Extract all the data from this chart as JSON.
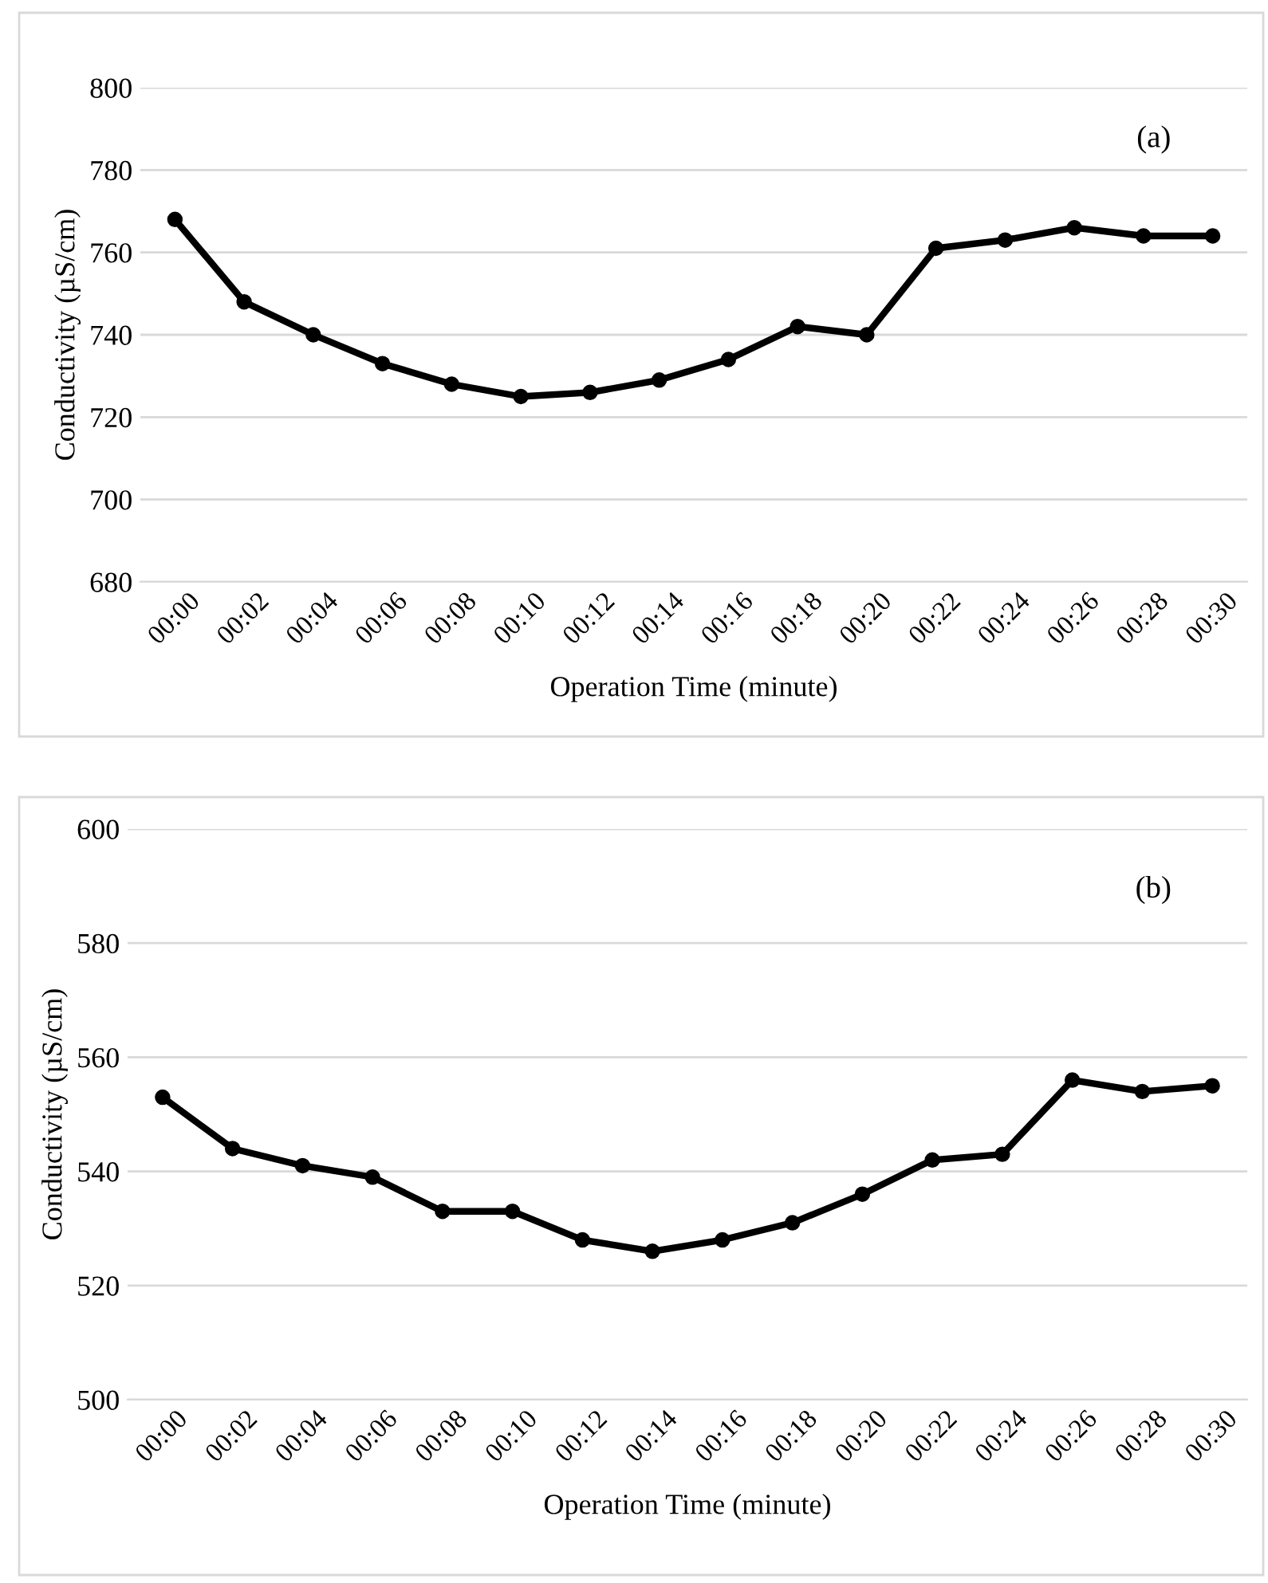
{
  "chart_data": [
    {
      "type": "line",
      "ylabel": "Conductivity (µS/cm)",
      "xlabel": "Operation Time (minute)",
      "annotations": [
        "(a)"
      ],
      "categories": [
        "00:00",
        "00:02",
        "00:04",
        "00:06",
        "00:08",
        "00:10",
        "00:12",
        "00:14",
        "00:16",
        "00:18",
        "00:20",
        "00:22",
        "00:24",
        "00:26",
        "00:28",
        "00:30"
      ],
      "series": [
        {
          "color": "#000000",
          "values": [
            768,
            748,
            740,
            733,
            728,
            725,
            726,
            729,
            734,
            742,
            740,
            761,
            763,
            766,
            764,
            764
          ]
        }
      ],
      "ylim": [
        680,
        800
      ],
      "yticks": [
        680,
        700,
        720,
        740,
        760,
        780,
        800
      ],
      "grid": "y",
      "marker": "circle",
      "line_style": "solid"
    },
    {
      "type": "line",
      "ylabel": "Conductivity (µS/cm)",
      "xlabel": "Operation Time (minute)",
      "annotations": [
        "(b)"
      ],
      "categories": [
        "00:00",
        "00:02",
        "00:04",
        "00:06",
        "00:08",
        "00:10",
        "00:12",
        "00:14",
        "00:16",
        "00:18",
        "00:20",
        "00:22",
        "00:24",
        "00:26",
        "00:28",
        "00:30"
      ],
      "series": [
        {
          "color": "#000000",
          "values": [
            553,
            544,
            541,
            539,
            533,
            533,
            528,
            526,
            528,
            531,
            536,
            542,
            543,
            556,
            554,
            555
          ]
        }
      ],
      "ylim": [
        500,
        600
      ],
      "yticks": [
        500,
        520,
        540,
        560,
        580,
        600
      ],
      "grid": "y",
      "marker": "circle",
      "line_style": "solid"
    }
  ]
}
